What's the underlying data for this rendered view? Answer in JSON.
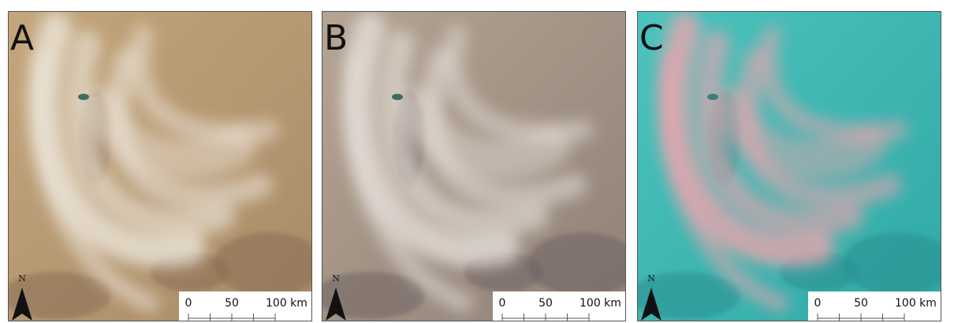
{
  "panels": [
    {
      "label": "A",
      "north": "N",
      "scale": [
        "0",
        "50",
        "100 km"
      ]
    },
    {
      "label": "B",
      "north": "N",
      "scale": [
        "0",
        "50",
        "100 km"
      ]
    },
    {
      "label": "C",
      "north": "N",
      "scale": [
        "0",
        "50",
        "100 km"
      ]
    }
  ]
}
